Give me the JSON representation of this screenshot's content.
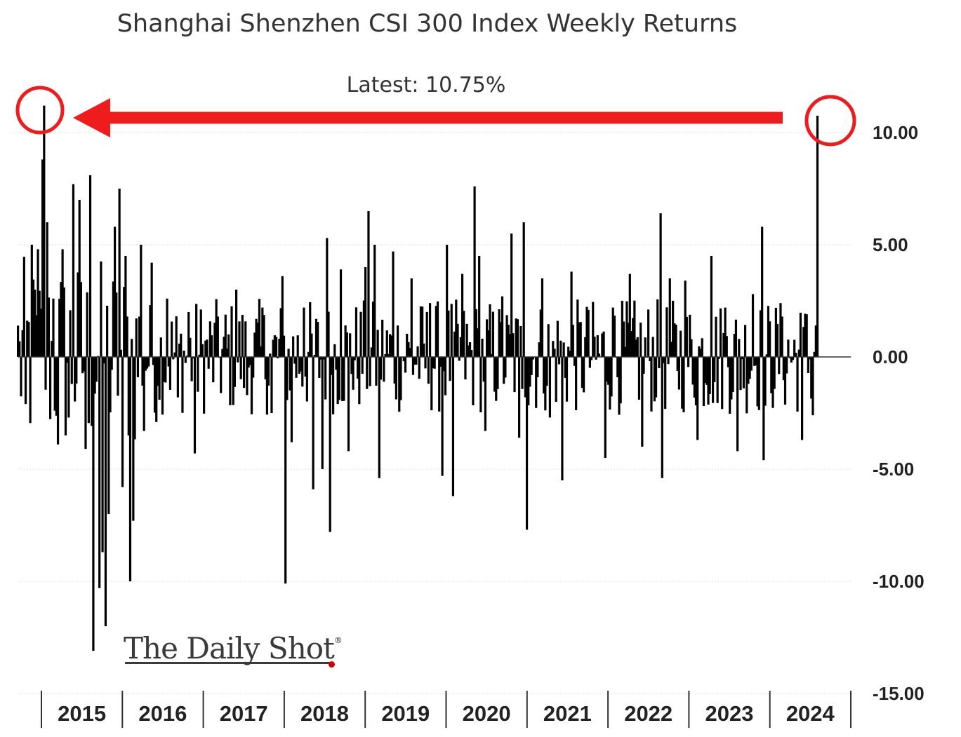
{
  "chart_data": {
    "type": "bar",
    "title": "Shanghai Shenzhen CSI 300 Index Weekly Returns",
    "annotation": "Latest:  10.75%",
    "latest_value": 10.75,
    "highlight_color": "#ee1c1c",
    "bar_color": "#000000",
    "grid": true,
    "ylim": [
      -15,
      11
    ],
    "y_ticks": [
      {
        "value": 10,
        "label": "10.00"
      },
      {
        "value": 5,
        "label": "5.00"
      },
      {
        "value": 0,
        "label": "0.00"
      },
      {
        "value": -5,
        "label": "-5.00"
      },
      {
        "value": -10,
        "label": "-10.00"
      },
      {
        "value": -15,
        "label": "-15.00"
      }
    ],
    "x_ticks": [
      "2015",
      "2016",
      "2017",
      "2018",
      "2019",
      "2020",
      "2021",
      "2022",
      "2023",
      "2024"
    ],
    "x_start_year": 2014.75,
    "x_end_year": 2024.9,
    "key_weeks": [
      {
        "year": 2014.76,
        "value": 0.7
      },
      {
        "year": 2014.84,
        "value": -2.1
      },
      {
        "year": 2014.93,
        "value": 5.0
      },
      {
        "year": 2014.97,
        "value": 3.0
      },
      {
        "year": 2015.0,
        "value": 4.8
      },
      {
        "year": 2015.06,
        "value": 8.8
      },
      {
        "year": 2015.08,
        "value": 11.2
      },
      {
        "year": 2015.12,
        "value": 6.0
      },
      {
        "year": 2015.2,
        "value": 2.6
      },
      {
        "year": 2015.25,
        "value": -3.9
      },
      {
        "year": 2015.3,
        "value": 4.8
      },
      {
        "year": 2015.38,
        "value": -2.7
      },
      {
        "year": 2015.44,
        "value": 7.7
      },
      {
        "year": 2015.52,
        "value": 7.0
      },
      {
        "year": 2015.6,
        "value": -4.1
      },
      {
        "year": 2015.66,
        "value": 8.1
      },
      {
        "year": 2015.7,
        "value": -13.1
      },
      {
        "year": 2015.76,
        "value": -10.3
      },
      {
        "year": 2015.8,
        "value": -8.7
      },
      {
        "year": 2015.84,
        "value": -12.0
      },
      {
        "year": 2015.88,
        "value": -7.0
      },
      {
        "year": 2015.97,
        "value": 5.8
      },
      {
        "year": 2016.02,
        "value": 7.5
      },
      {
        "year": 2016.05,
        "value": -5.8
      },
      {
        "year": 2016.1,
        "value": 4.5
      },
      {
        "year": 2016.16,
        "value": -10.0
      },
      {
        "year": 2016.2,
        "value": -7.3
      },
      {
        "year": 2016.28,
        "value": 5.0
      },
      {
        "year": 2016.32,
        "value": -3.3
      },
      {
        "year": 2016.42,
        "value": 4.2
      },
      {
        "year": 2016.48,
        "value": -2.9
      },
      {
        "year": 2016.62,
        "value": 2.6
      },
      {
        "year": 2016.75,
        "value": -1.8
      },
      {
        "year": 2016.88,
        "value": 2.0
      },
      {
        "year": 2016.96,
        "value": -4.3
      },
      {
        "year": 2017.25,
        "value": 1.8
      },
      {
        "year": 2017.48,
        "value": 3.0
      },
      {
        "year": 2017.62,
        "value": -1.7
      },
      {
        "year": 2017.8,
        "value": 2.2
      },
      {
        "year": 2017.92,
        "value": -2.5
      },
      {
        "year": 2018.05,
        "value": 3.6
      },
      {
        "year": 2018.1,
        "value": -10.1
      },
      {
        "year": 2018.18,
        "value": -3.8
      },
      {
        "year": 2018.32,
        "value": 2.2
      },
      {
        "year": 2018.45,
        "value": -5.9
      },
      {
        "year": 2018.56,
        "value": -5.0
      },
      {
        "year": 2018.62,
        "value": 5.3
      },
      {
        "year": 2018.65,
        "value": -7.8
      },
      {
        "year": 2018.78,
        "value": 3.9
      },
      {
        "year": 2018.88,
        "value": -4.2
      },
      {
        "year": 2019.1,
        "value": 4.0
      },
      {
        "year": 2019.13,
        "value": 6.5
      },
      {
        "year": 2019.22,
        "value": 5.0
      },
      {
        "year": 2019.27,
        "value": -5.4
      },
      {
        "year": 2019.45,
        "value": 4.7
      },
      {
        "year": 2019.68,
        "value": 3.5
      },
      {
        "year": 2019.9,
        "value": 2.4
      },
      {
        "year": 2020.05,
        "value": -5.3
      },
      {
        "year": 2020.12,
        "value": 5.0
      },
      {
        "year": 2020.2,
        "value": -6.2
      },
      {
        "year": 2020.3,
        "value": 3.7
      },
      {
        "year": 2020.46,
        "value": 7.6
      },
      {
        "year": 2020.52,
        "value": 4.5
      },
      {
        "year": 2020.6,
        "value": -3.3
      },
      {
        "year": 2020.8,
        "value": 2.7
      },
      {
        "year": 2020.92,
        "value": 5.5
      },
      {
        "year": 2021.02,
        "value": -3.6
      },
      {
        "year": 2021.08,
        "value": 6.0
      },
      {
        "year": 2021.12,
        "value": -7.7
      },
      {
        "year": 2021.3,
        "value": 3.5
      },
      {
        "year": 2021.4,
        "value": -2.7
      },
      {
        "year": 2021.55,
        "value": -5.5
      },
      {
        "year": 2021.68,
        "value": 3.8
      },
      {
        "year": 2021.88,
        "value": 2.1
      },
      {
        "year": 2022.1,
        "value": -4.5
      },
      {
        "year": 2022.2,
        "value": 2.2
      },
      {
        "year": 2022.4,
        "value": 3.7
      },
      {
        "year": 2022.55,
        "value": -4.0
      },
      {
        "year": 2022.78,
        "value": 6.4
      },
      {
        "year": 2022.8,
        "value": -5.4
      },
      {
        "year": 2022.9,
        "value": 3.5
      },
      {
        "year": 2023.1,
        "value": 3.4
      },
      {
        "year": 2023.25,
        "value": -3.7
      },
      {
        "year": 2023.42,
        "value": 4.5
      },
      {
        "year": 2023.6,
        "value": 2.2
      },
      {
        "year": 2023.75,
        "value": -4.2
      },
      {
        "year": 2023.95,
        "value": 2.8
      },
      {
        "year": 2024.05,
        "value": 5.8
      },
      {
        "year": 2024.08,
        "value": -4.6
      },
      {
        "year": 2024.3,
        "value": 1.8
      },
      {
        "year": 2024.55,
        "value": -3.7
      },
      {
        "year": 2024.62,
        "value": 1.9
      },
      {
        "year": 2024.7,
        "value": -2.6
      },
      {
        "year": 2024.73,
        "value": 1.4
      },
      {
        "year": 2024.75,
        "value": 10.75
      }
    ]
  },
  "logo": {
    "text": "The Daily Shot",
    "mark": "®"
  }
}
